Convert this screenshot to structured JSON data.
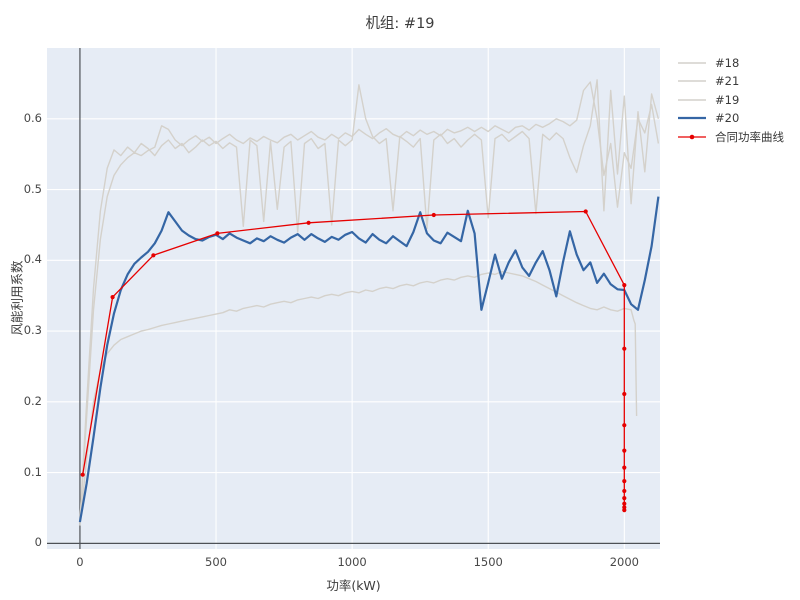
{
  "window": {
    "title": "机组: #19"
  },
  "chart_data": {
    "type": "line",
    "title": "机组: #19",
    "xlabel": "功率(kW)",
    "ylabel": "风能利用系数",
    "xlim": [
      -121,
      2131
    ],
    "ylim": [
      -0.008,
      0.7
    ],
    "xticks": [
      0,
      500,
      1000,
      1500,
      2000
    ],
    "xtick_labels": [
      "0",
      "500",
      "1000",
      "1500",
      "2000"
    ],
    "yticks": [
      0,
      0.1,
      0.2,
      0.3,
      0.4,
      0.5,
      0.6
    ],
    "ytick_labels": [
      "0",
      "0.1",
      "0.2",
      "0.3",
      "0.4",
      "0.5",
      "0.6"
    ],
    "grid": true,
    "background_color": "#e6ecf5",
    "grid_color": "#ffffff",
    "zeroline_color": "#4d5156",
    "text_color": "#3d3d3d",
    "legend_position": "right",
    "series": [
      {
        "name": "#18",
        "color": "#d4d1cb",
        "width": 1.4,
        "marker": false,
        "x0": 0,
        "dx": 25,
        "y": [
          0.03,
          0.18,
          0.33,
          0.43,
          0.49,
          0.52,
          0.535,
          0.545,
          0.552,
          0.548,
          0.555,
          0.56,
          0.59,
          0.585,
          0.57,
          0.562,
          0.57,
          0.576,
          0.568,
          0.574,
          0.565,
          0.572,
          0.578,
          0.57,
          0.565,
          0.573,
          0.568,
          0.575,
          0.57,
          0.566,
          0.574,
          0.578,
          0.57,
          0.576,
          0.582,
          0.574,
          0.57,
          0.578,
          0.572,
          0.58,
          0.575,
          0.585,
          0.578,
          0.572,
          0.58,
          0.586,
          0.578,
          0.574,
          0.582,
          0.576,
          0.584,
          0.578,
          0.582,
          0.576,
          0.585,
          0.58,
          0.583,
          0.588,
          0.582,
          0.588,
          0.582,
          0.59,
          0.585,
          0.58,
          0.588,
          0.59,
          0.584,
          0.592,
          0.588,
          0.593,
          0.6,
          0.596,
          0.59,
          0.598,
          0.64,
          0.652,
          0.6,
          0.52,
          0.565,
          0.475,
          0.552,
          0.53,
          0.6,
          0.58,
          0.62,
          0.565
        ]
      },
      {
        "name": "#21",
        "color": "#d4d1cb",
        "width": 1.4,
        "marker": false,
        "x0": 0,
        "dx": 25,
        "y": [
          0.025,
          0.12,
          0.2,
          0.245,
          0.268,
          0.28,
          0.288,
          0.292,
          0.296,
          0.3,
          0.302,
          0.305,
          0.308,
          0.31,
          0.312,
          0.314,
          0.316,
          0.318,
          0.32,
          0.322,
          0.324,
          0.326,
          0.33,
          0.328,
          0.332,
          0.334,
          0.336,
          0.334,
          0.338,
          0.34,
          0.342,
          0.34,
          0.344,
          0.346,
          0.348,
          0.346,
          0.35,
          0.352,
          0.35,
          0.354,
          0.356,
          0.354,
          0.358,
          0.356,
          0.36,
          0.362,
          0.36,
          0.364,
          0.366,
          0.364,
          0.368,
          0.37,
          0.368,
          0.372,
          0.374,
          0.372,
          0.376,
          0.378,
          0.376,
          0.38,
          0.382,
          0.38,
          0.384,
          0.382,
          0.38,
          0.378,
          0.374,
          0.37,
          0.365,
          0.36,
          0.355,
          0.35,
          0.345,
          0.34,
          0.336,
          0.332,
          0.33,
          0.334,
          0.33,
          0.328,
          0.332,
          0.33
        ],
        "extra": [
          [
            2035,
            0.315
          ],
          [
            2040,
            0.31
          ],
          [
            2045,
            0.18
          ]
        ]
      },
      {
        "name": "#19",
        "color": "#d4d1cb",
        "width": 1.4,
        "marker": false,
        "x0": 0,
        "dx": 25,
        "y": [
          0.03,
          0.2,
          0.36,
          0.47,
          0.53,
          0.556,
          0.548,
          0.56,
          0.552,
          0.565,
          0.558,
          0.548,
          0.562,
          0.57,
          0.558,
          0.565,
          0.552,
          0.56,
          0.57,
          0.562,
          0.568,
          0.558,
          0.566,
          0.56,
          0.448,
          0.57,
          0.562,
          0.455,
          0.568,
          0.472,
          0.56,
          0.568,
          0.44,
          0.565,
          0.572,
          0.558,
          0.565,
          0.45,
          0.57,
          0.562,
          0.57,
          0.648,
          0.6,
          0.575,
          0.565,
          0.572,
          0.47,
          0.575,
          0.568,
          0.56,
          0.572,
          0.445,
          0.57,
          0.578,
          0.565,
          0.572,
          0.56,
          0.57,
          0.578,
          0.57,
          0.46,
          0.572,
          0.578,
          0.568,
          0.575,
          0.582,
          0.572,
          0.466,
          0.578,
          0.57,
          0.58,
          0.572,
          0.545,
          0.524,
          0.562,
          0.59,
          0.655,
          0.47,
          0.64,
          0.522,
          0.632,
          0.48,
          0.61,
          0.525,
          0.635,
          0.6
        ]
      },
      {
        "name": "#20",
        "color": "#3566a5",
        "width": 2.2,
        "marker": false,
        "x0": 0,
        "dx": 25,
        "y": [
          0.03,
          0.085,
          0.15,
          0.22,
          0.28,
          0.325,
          0.358,
          0.38,
          0.395,
          0.404,
          0.412,
          0.424,
          0.442,
          0.468,
          0.455,
          0.442,
          0.435,
          0.43,
          0.428,
          0.433,
          0.436,
          0.43,
          0.438,
          0.432,
          0.428,
          0.424,
          0.431,
          0.427,
          0.434,
          0.429,
          0.425,
          0.432,
          0.437,
          0.429,
          0.437,
          0.431,
          0.426,
          0.433,
          0.429,
          0.436,
          0.44,
          0.431,
          0.425,
          0.437,
          0.429,
          0.424,
          0.434,
          0.427,
          0.42,
          0.44,
          0.468,
          0.438,
          0.428,
          0.424,
          0.439,
          0.433,
          0.427,
          0.47,
          0.438,
          0.33,
          0.368,
          0.408,
          0.374,
          0.397,
          0.414,
          0.39,
          0.378,
          0.397,
          0.413,
          0.386,
          0.349,
          0.398,
          0.441,
          0.408,
          0.386,
          0.397,
          0.368,
          0.381,
          0.366,
          0.359,
          0.358,
          0.338,
          0.33,
          0.372,
          0.42,
          0.49
        ]
      },
      {
        "name": "合同功率曲线",
        "color": "#e60000",
        "width": 1.3,
        "marker": true,
        "points": [
          [
            10,
            0.097
          ],
          [
            120,
            0.348
          ],
          [
            270,
            0.407
          ],
          [
            505,
            0.438
          ],
          [
            840,
            0.453
          ],
          [
            1300,
            0.464
          ],
          [
            1858,
            0.469
          ],
          [
            2000,
            0.365
          ],
          [
            2000,
            0.275
          ],
          [
            2000,
            0.211
          ],
          [
            2000,
            0.167
          ],
          [
            2000,
            0.131
          ],
          [
            2000,
            0.107
          ],
          [
            2000,
            0.088
          ],
          [
            2000,
            0.074
          ],
          [
            2000,
            0.064
          ],
          [
            2000,
            0.056
          ],
          [
            2000,
            0.051
          ],
          [
            2000,
            0.047
          ]
        ]
      }
    ]
  }
}
